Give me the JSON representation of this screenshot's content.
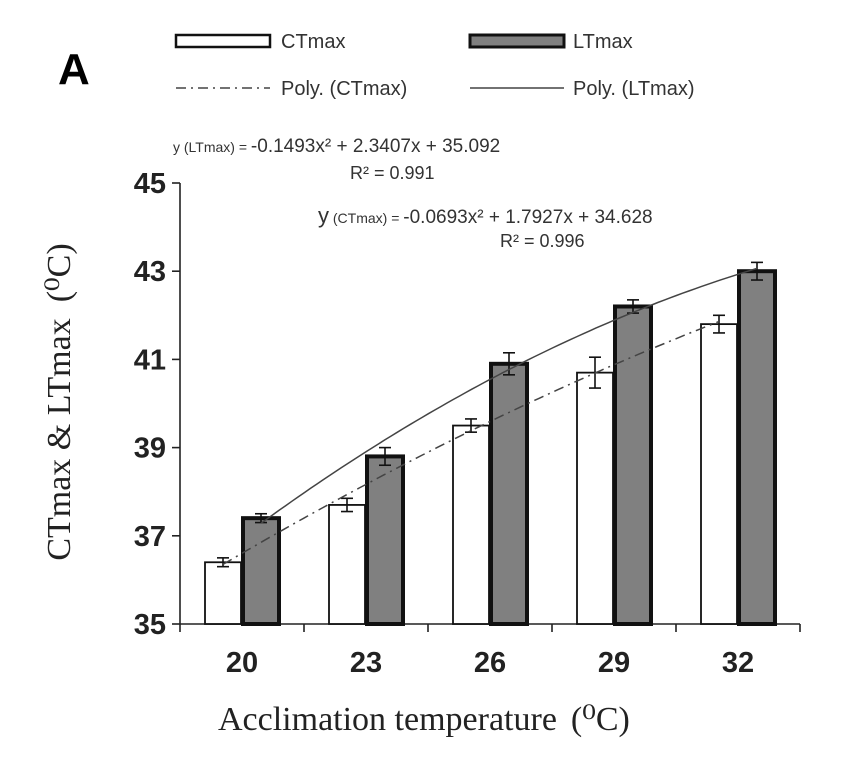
{
  "panel_label": "A",
  "legend": {
    "ctmax": "CTmax",
    "ltmax": "LTmax",
    "poly_ctmax": "Poly. (CTmax)",
    "poly_ltmax": "Poly. (LTmax)"
  },
  "equations": {
    "lt_prefix": "y (LTmax) = ",
    "lt_formula": "-0.1493x² + 2.3407x + 35.092",
    "lt_r2": "R² = 0.991",
    "ct_y": "y",
    "ct_paren": " (CTmax) = ",
    "ct_formula": "-0.0693x² + 1.7927x + 34.628",
    "ct_r2": "R² = 0.996"
  },
  "colors": {
    "ctmax_fill": "#ffffff",
    "ltmax_fill": "#808080",
    "outline": "#111111"
  },
  "chart_data": {
    "type": "bar",
    "xlabel": "Acclimation temperature",
    "xunit": "(⁰C)",
    "ylabel": "CTmax & LTmax",
    "yunit": "(⁰C)",
    "categories": [
      "20",
      "23",
      "26",
      "29",
      "32"
    ],
    "ylim": [
      35,
      45
    ],
    "yticks": [
      35,
      37,
      39,
      41,
      43,
      45
    ],
    "grid": false,
    "legend_position": "top",
    "series": [
      {
        "name": "CTmax",
        "values": [
          36.4,
          37.7,
          39.5,
          40.7,
          41.8
        ],
        "errors": [
          0.1,
          0.15,
          0.15,
          0.35,
          0.2
        ]
      },
      {
        "name": "LTmax",
        "values": [
          37.4,
          38.8,
          40.9,
          42.2,
          43.0
        ],
        "errors": [
          0.1,
          0.2,
          0.25,
          0.15,
          0.2
        ]
      }
    ],
    "trendlines": [
      {
        "name": "Poly. (CTmax)",
        "style": "dash-dot",
        "coefficients": [
          -0.0693,
          1.7927,
          34.628
        ]
      },
      {
        "name": "Poly. (LTmax)",
        "style": "solid",
        "coefficients": [
          -0.1493,
          2.3407,
          35.092
        ]
      }
    ]
  }
}
